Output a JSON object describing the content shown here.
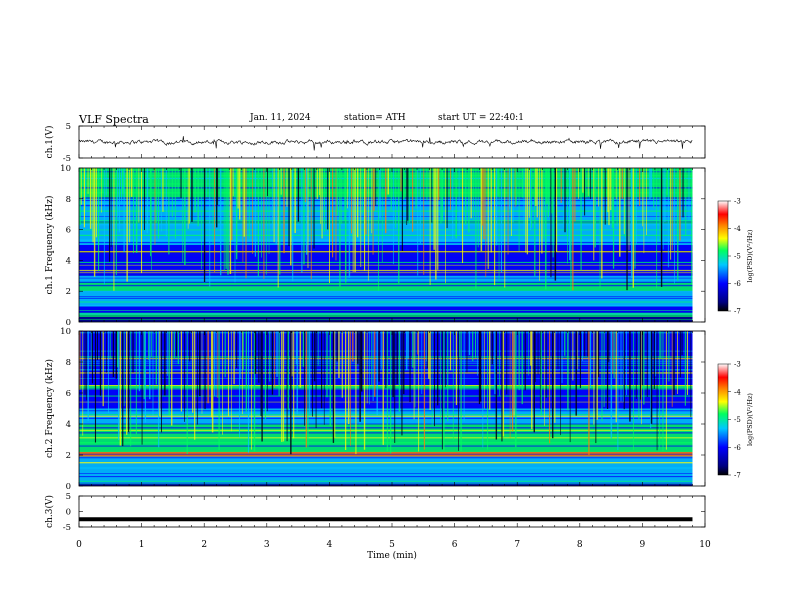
{
  "header": {
    "title": "VLF Spectra",
    "date": "Jan. 11, 2024",
    "station": "station= ATH",
    "start": "start UT = 22:40:1"
  },
  "chart_data": [
    {
      "type": "line",
      "ylabel": "ch.1(V)",
      "ylim": [
        -5,
        5
      ],
      "yticks": [
        "5",
        "-5"
      ],
      "xlim": [
        0,
        10
      ],
      "description_of_series": "noisy waveform around 0 V, amplitude about ±1 V with occasional spikes",
      "baseline_value": 0
    },
    {
      "type": "heatmap",
      "ylabel": "ch.1 Frequency (kHz)",
      "ylim": [
        0,
        10
      ],
      "yticks": [
        "0",
        "2",
        "4",
        "6",
        "8",
        "10"
      ],
      "xlim": [
        0,
        10
      ],
      "colorbar": {
        "label": "log(PSD)(V²/Hz)",
        "ticks": [
          "-3",
          "-4",
          "-5",
          "-6",
          "-7"
        ],
        "range": [
          -7,
          -3
        ]
      }
    },
    {
      "type": "heatmap",
      "ylabel": "ch.2 Frequency (kHz)",
      "ylim": [
        0,
        10
      ],
      "yticks": [
        "0",
        "2",
        "4",
        "6",
        "8",
        "10"
      ],
      "xlim": [
        0,
        10
      ],
      "colorbar": {
        "label": "log(PSD)(V²/Hz)",
        "ticks": [
          "-3",
          "-4",
          "-5",
          "-6",
          "-7"
        ],
        "range": [
          -7,
          -3
        ]
      }
    },
    {
      "type": "line",
      "ylabel": "ch.3(V)",
      "ylim": [
        -5,
        5
      ],
      "yticks": [
        "5",
        "0",
        "-5"
      ],
      "xlim": [
        0,
        10
      ],
      "constant_value": -2.5
    }
  ],
  "xaxis": {
    "label": "Time (min)",
    "ticks": [
      "0",
      "1",
      "2",
      "3",
      "4",
      "5",
      "6",
      "7",
      "8",
      "9",
      "10"
    ]
  }
}
